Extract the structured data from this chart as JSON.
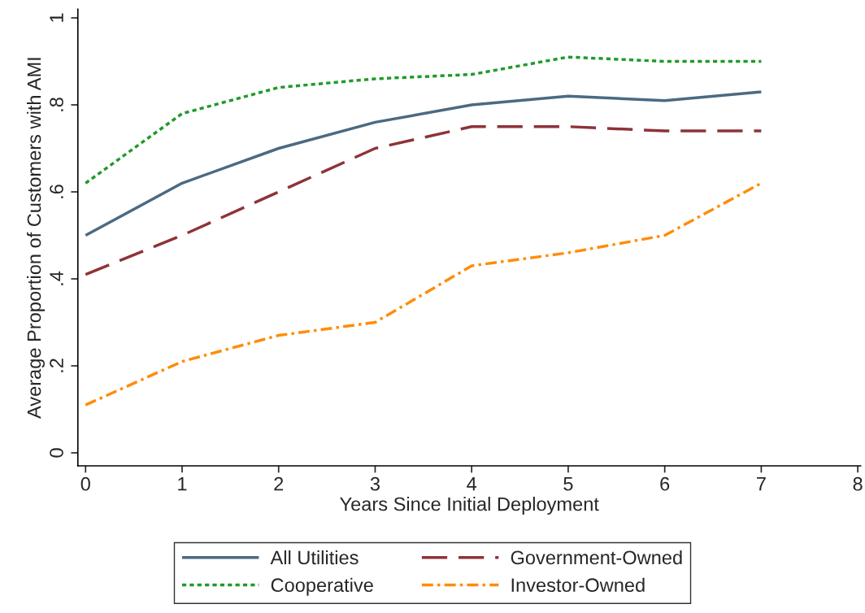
{
  "chart_data": {
    "type": "line",
    "xlabel": "Years Since Initial Deployment",
    "ylabel": "Average Proportion of Customers with AMI",
    "x": [
      0,
      1,
      2,
      3,
      4,
      5,
      6,
      7
    ],
    "series": [
      {
        "name": "All Utilities",
        "color": "#4b6a82",
        "line_style": "solid",
        "values": [
          0.5,
          0.62,
          0.7,
          0.76,
          0.8,
          0.82,
          0.81,
          0.83
        ]
      },
      {
        "name": "Government-Owned",
        "color": "#8e3339",
        "line_style": "longdash",
        "values": [
          0.41,
          0.5,
          0.6,
          0.7,
          0.75,
          0.75,
          0.74,
          0.74
        ]
      },
      {
        "name": "Cooperative",
        "color": "#1f9a2a",
        "line_style": "dotted",
        "values": [
          0.62,
          0.78,
          0.84,
          0.86,
          0.87,
          0.91,
          0.9,
          0.9
        ]
      },
      {
        "name": "Investor-Owned",
        "color": "#ff8c0a",
        "line_style": "dashdot",
        "values": [
          0.11,
          0.21,
          0.27,
          0.3,
          0.43,
          0.46,
          0.5,
          0.62
        ]
      }
    ],
    "xlim": [
      -0.08,
      8.03
    ],
    "xticks": [
      0,
      1,
      2,
      3,
      4,
      5,
      6,
      7,
      8
    ],
    "ylim": [
      -0.03,
      1.02
    ],
    "yticks": [
      0,
      {
        "value": 0.2,
        "label": ".2"
      },
      {
        "value": 0.4,
        "label": ".4"
      },
      {
        "value": 0.6,
        "label": ".6"
      },
      {
        "value": 0.8,
        "label": ".8"
      },
      1
    ],
    "grid": false,
    "legend": "bottom",
    "marker": "none"
  }
}
